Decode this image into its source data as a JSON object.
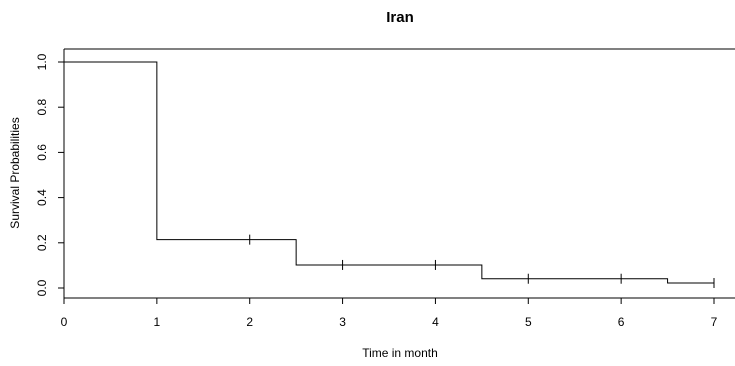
{
  "chart_data": {
    "type": "line",
    "subtype": "step",
    "title": "Iran",
    "xlabel": "Time in month",
    "ylabel": "Survival Probabilities",
    "xlim": [
      0,
      7
    ],
    "ylim": [
      0,
      1
    ],
    "x_ticks": [
      "0",
      "1",
      "2",
      "3",
      "4",
      "5",
      "6",
      "7"
    ],
    "y_ticks": [
      "0.0",
      "0.2",
      "0.4",
      "0.6",
      "0.8",
      "1.0"
    ],
    "grid": false,
    "legend": "none",
    "line_color": "#000000",
    "series": [
      {
        "x": [
          0,
          1,
          2.5,
          4.5,
          6.5,
          7
        ],
        "y": [
          1.0,
          0.214,
          0.102,
          0.041,
          0.022,
          0.022
        ]
      }
    ],
    "censor_marks": [
      {
        "x": 2,
        "y": 0.214
      },
      {
        "x": 3,
        "y": 0.102
      },
      {
        "x": 4,
        "y": 0.102
      },
      {
        "x": 5,
        "y": 0.041
      },
      {
        "x": 6,
        "y": 0.041
      },
      {
        "x": 7,
        "y": 0.022
      }
    ]
  }
}
